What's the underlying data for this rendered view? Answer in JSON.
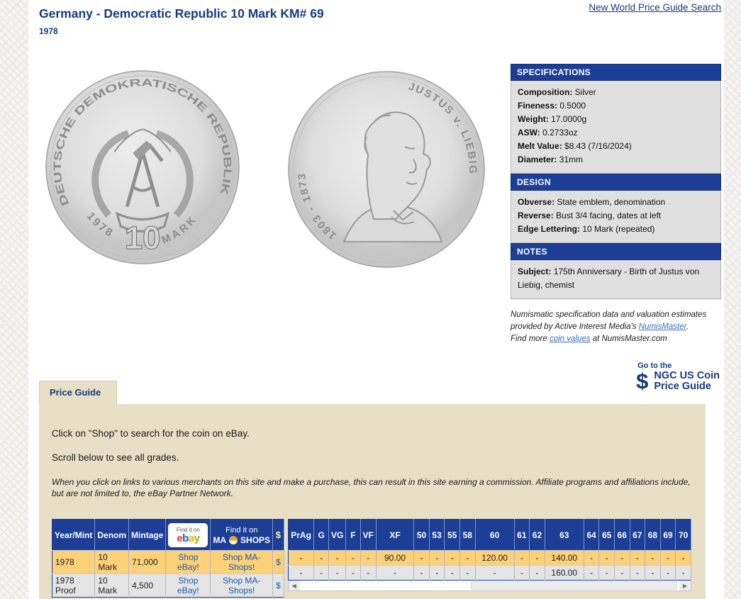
{
  "page": {
    "title": "Germany - Democratic Republic 10 Mark KM# 69",
    "subtitle": "1978",
    "top_link": "New World Price Guide Search"
  },
  "coins": {
    "obverse": {
      "legend": "DEUTSCHE DEMOKRATISCHE REPUBLIK",
      "date": "1978",
      "value": "10",
      "unit": "MARK"
    },
    "reverse": {
      "legend_right": "JUSTUS v. LIEBIG",
      "legend_left": "1803 - 1873"
    }
  },
  "panels": {
    "specifications": {
      "header": "SPECIFICATIONS",
      "rows": [
        {
          "label": "Composition:",
          "value": "Silver"
        },
        {
          "label": "Fineness:",
          "value": "0.5000"
        },
        {
          "label": "Weight:",
          "value": "17.0000g"
        },
        {
          "label": "ASW:",
          "value": "0.2733oz"
        },
        {
          "label": "Melt Value:",
          "value": "$8.43 (7/16/2024)"
        },
        {
          "label": "Diameter:",
          "value": "31mm"
        }
      ]
    },
    "design": {
      "header": "DESIGN",
      "rows": [
        {
          "label": "Obverse:",
          "value": "State emblem, denomination"
        },
        {
          "label": "Reverse:",
          "value": "Bust 3/4 facing, dates at left"
        },
        {
          "label": "Edge Lettering:",
          "value": "10 Mark (repeated)"
        }
      ]
    },
    "notes": {
      "header": "NOTES",
      "rows": [
        {
          "label": "Subject:",
          "value": "175th Anniversary - Birth of Justus von Liebig, chemist"
        }
      ]
    }
  },
  "attribution": {
    "line1_text": "Numismatic specification data and valuation estimates provided by Active Interest Media's ",
    "line1_link": "NumisMaster",
    "line1_end": ".",
    "line2_text": "Find more ",
    "line2_link": "coin values",
    "line2_end": " at NumisMaster.com"
  },
  "ngc": {
    "pre": "Go to the",
    "icon": "$",
    "line1": "NGC US Coin",
    "line2": "Price Guide"
  },
  "price_guide": {
    "tab_label": "Price Guide",
    "instruction1": "Click on \"Shop\" to search for the coin on eBay.",
    "instruction2": "Scroll below to see all grades.",
    "disclaimer": "When you click on links to various merchants on this site and make a purchase, this can result in this site earning a commission. Affiliate programs and affiliations include, but are not limited to, the eBay Partner Network.",
    "table": {
      "col_year": "Year/Mint",
      "col_denom": "Denom",
      "col_mintage": "Mintage",
      "ebay_badge_top": "Find it on",
      "ebay_letters": [
        "e",
        "b",
        "a",
        "y"
      ],
      "mashops_top": "Find it on",
      "mashops_ma": "MA",
      "mashops_shops": "SHOPS",
      "dollar_header": "$",
      "grade_headers": [
        "PrAg",
        "G",
        "VG",
        "F",
        "VF",
        "XF",
        "50",
        "53",
        "55",
        "58",
        "60",
        "61",
        "62",
        "63",
        "64",
        "65",
        "66",
        "67",
        "68",
        "69",
        "70"
      ],
      "rows": [
        {
          "year": "1978",
          "denom": "10 Mark",
          "mintage": "71,000",
          "ebay_link": "Shop eBay!",
          "mashops_link": "Shop MA-Shops!",
          "dollar": "$",
          "grades": [
            "-",
            "-",
            "-",
            "-",
            "-",
            "90.00",
            "-",
            "-",
            "-",
            "-",
            "120.00",
            "-",
            "-",
            "140.00",
            "-",
            "-",
            "-",
            "-",
            "-",
            "-",
            "-"
          ]
        },
        {
          "year": "1978 Proof",
          "denom": "10 Mark",
          "mintage": "4,500",
          "ebay_link": "Shop eBay!",
          "mashops_link": "Shop MA-Shops!",
          "dollar": "$",
          "grades": [
            "-",
            "-",
            "-",
            "-",
            "-",
            "-",
            "-",
            "-",
            "-",
            "-",
            "-",
            "-",
            "-",
            "160.00",
            "-",
            "-",
            "-",
            "-",
            "-",
            "-",
            "-"
          ]
        }
      ]
    }
  },
  "colors": {
    "navy": "#1c3e96",
    "title_navy": "#163a7d",
    "tan_panel": "#e8e0c6",
    "row_highlight": "#fcd179",
    "row_alt": "#e4e4e4",
    "link_blue": "#1b5bad",
    "ebay_e": "#e53238",
    "ebay_b": "#0064d2",
    "ebay_a": "#f5af02",
    "ebay_y": "#86b817",
    "mashops_orange": "#f0a22c"
  }
}
